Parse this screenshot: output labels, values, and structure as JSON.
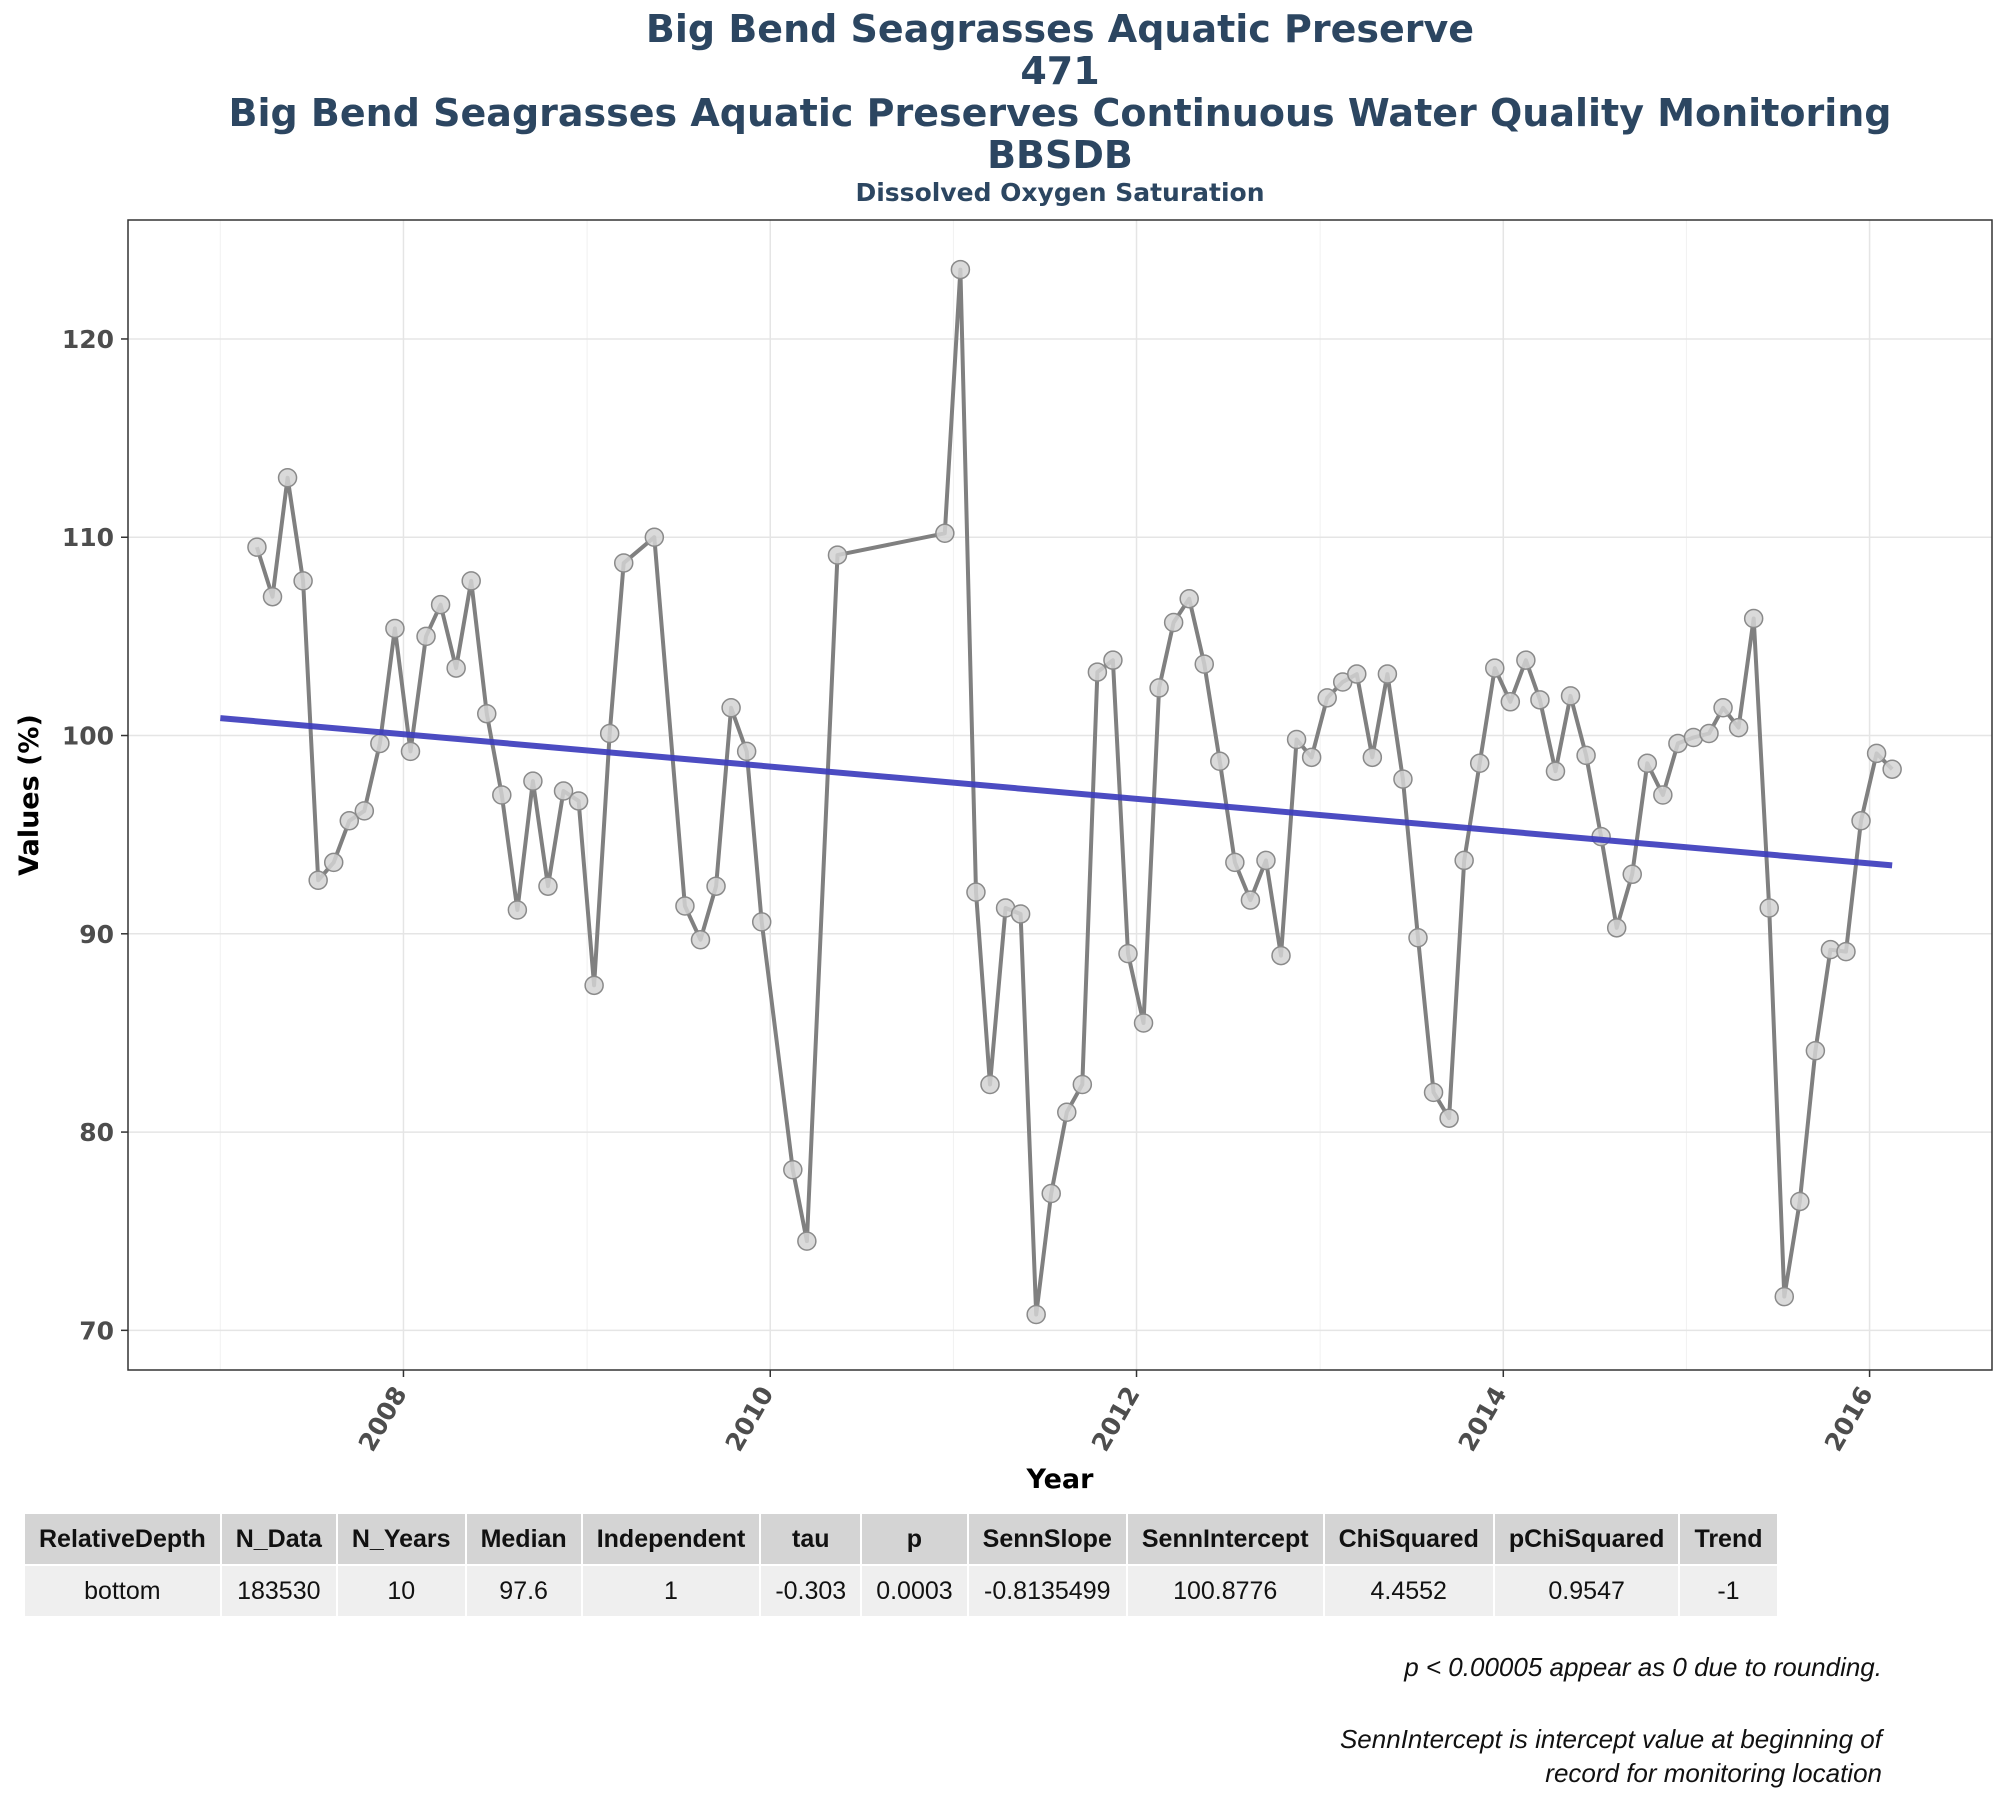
{
  "header": {
    "line1": "Big Bend Seagrasses Aquatic Preserve",
    "line2": "471",
    "line3": "Big Bend Seagrasses Aquatic Preserves Continuous Water Quality Monitoring",
    "line4": "BBSDB",
    "subtitle": "Dissolved Oxygen Saturation"
  },
  "chart_data": {
    "type": "line",
    "xlabel": "Year",
    "ylabel": "Values (%)",
    "xlim": [
      "2006-07-01",
      "2016-09-01"
    ],
    "ylim": [
      68,
      126
    ],
    "x_ticks": [
      "2008",
      "2010",
      "2012",
      "2014",
      "2016"
    ],
    "y_ticks": [
      70,
      80,
      90,
      100,
      110,
      120
    ],
    "grid": true,
    "colors": {
      "series": "#808080",
      "trend": "#3d3dbd",
      "point_fill": "#d3d3d3",
      "point_stroke": "#8a8a8a"
    },
    "series": [
      {
        "x": [
          "2007-03-15",
          "2007-04-15",
          "2007-05-15",
          "2007-06-15",
          "2007-07-15",
          "2007-08-15",
          "2007-09-15",
          "2007-10-15",
          "2007-11-15",
          "2007-12-15",
          "2008-01-15",
          "2008-02-15",
          "2008-03-15",
          "2008-04-15",
          "2008-05-15",
          "2008-06-15",
          "2008-07-15",
          "2008-08-15",
          "2008-09-15",
          "2008-10-15",
          "2008-11-15",
          "2008-12-15",
          "2009-01-15",
          "2009-02-15",
          "2009-03-15",
          "2009-05-15",
          "2009-07-15",
          "2009-08-15",
          "2009-09-15",
          "2009-10-15",
          "2009-11-15",
          "2009-12-15",
          "2010-02-15",
          "2010-03-15",
          "2010-05-15",
          "2010-12-15",
          "2011-01-15",
          "2011-02-15",
          "2011-03-15",
          "2011-04-15",
          "2011-05-15",
          "2011-06-15",
          "2011-07-15",
          "2011-08-15",
          "2011-09-15",
          "2011-10-15",
          "2011-11-15",
          "2011-12-15",
          "2012-01-15",
          "2012-02-15",
          "2012-03-15",
          "2012-04-15",
          "2012-05-15",
          "2012-06-15",
          "2012-07-15",
          "2012-08-15",
          "2012-09-15",
          "2012-10-15",
          "2012-11-15",
          "2012-12-15",
          "2013-01-15",
          "2013-02-15",
          "2013-03-15",
          "2013-04-15",
          "2013-05-15",
          "2013-06-15",
          "2013-07-15",
          "2013-08-15",
          "2013-09-15",
          "2013-10-15",
          "2013-11-15",
          "2013-12-15",
          "2014-01-15",
          "2014-02-15",
          "2014-03-15",
          "2014-04-15",
          "2014-05-15",
          "2014-06-15",
          "2014-07-15",
          "2014-08-15",
          "2014-09-15",
          "2014-10-15",
          "2014-11-15",
          "2014-12-15",
          "2015-01-15",
          "2015-02-15",
          "2015-03-15",
          "2015-04-15",
          "2015-05-15",
          "2015-06-15",
          "2015-07-15",
          "2015-08-15",
          "2015-09-15",
          "2015-10-15",
          "2015-11-15",
          "2015-12-15",
          "2016-01-15",
          "2016-02-15"
        ],
        "values": [
          109.5,
          107.0,
          113.0,
          107.8,
          92.7,
          93.6,
          95.7,
          96.2,
          99.6,
          105.4,
          99.2,
          105.0,
          106.6,
          103.4,
          107.8,
          101.1,
          97.0,
          91.2,
          97.7,
          92.4,
          97.2,
          96.7,
          87.4,
          100.1,
          108.7,
          110.0,
          91.4,
          89.7,
          92.4,
          101.4,
          99.2,
          90.6,
          78.1,
          74.5,
          109.1,
          110.2,
          123.5,
          92.1,
          82.4,
          91.3,
          91.0,
          70.8,
          76.9,
          81.0,
          82.4,
          103.2,
          103.8,
          89.0,
          85.5,
          102.4,
          105.7,
          106.9,
          103.6,
          98.7,
          93.6,
          91.7,
          93.7,
          88.9,
          99.8,
          98.9,
          101.9,
          102.7,
          103.1,
          98.9,
          103.1,
          97.8,
          89.8,
          82.0,
          80.7,
          93.7,
          98.6,
          103.4,
          101.7,
          103.8,
          101.8,
          98.2,
          102.0,
          99.0,
          94.9,
          90.3,
          93.0,
          98.6,
          97.0,
          99.6,
          99.9,
          100.1,
          101.4,
          100.4,
          105.9,
          91.3,
          71.7,
          76.5,
          84.1,
          89.2,
          89.1,
          95.7,
          99.1,
          98.3
        ]
      }
    ],
    "trend": {
      "x": [
        "2007-01-01",
        "2016-02-15"
      ],
      "y": [
        100.8776,
        93.45
      ]
    }
  },
  "table": {
    "headers": [
      "RelativeDepth",
      "N_Data",
      "N_Years",
      "Median",
      "Independent",
      "tau",
      "p",
      "SennSlope",
      "SennIntercept",
      "ChiSquared",
      "pChiSquared",
      "Trend"
    ],
    "row": [
      "bottom",
      "183530",
      "10",
      "97.6",
      "1",
      "-0.303",
      "0.0003",
      "-0.8135499",
      "100.8776",
      "4.4552",
      "0.9547",
      "-1"
    ]
  },
  "notes": {
    "note1": "p < 0.00005 appear as 0 due to rounding.",
    "note2a": "SennIntercept is intercept value at beginning of",
    "note2b": "record for monitoring location"
  }
}
